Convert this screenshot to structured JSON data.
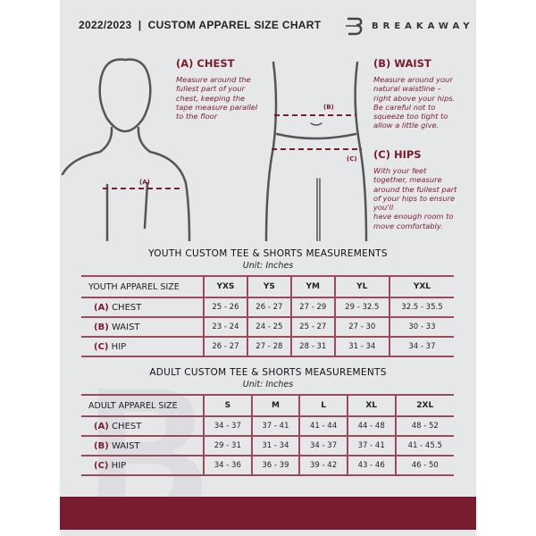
{
  "header": {
    "title": "2022/2023  |  CUSTOM APPAREL SIZE CHART",
    "brand": "BREAKAWAY"
  },
  "colors": {
    "accent": "#7a1c30",
    "background": "#e6e7e9"
  },
  "diagram": {
    "label_a": "(A)",
    "label_b": "(B)",
    "label_c": "(C)"
  },
  "sections": {
    "chest": {
      "heading": "(A) CHEST",
      "text": [
        "Measure around the",
        "fullest part of your",
        "chest, keeping the",
        "tape measure parallel",
        "to the floor"
      ]
    },
    "waist": {
      "heading": "(B) WAIST",
      "text": [
        "Measure around your",
        "natural waistline –",
        "right above your hips.",
        "Be careful not to",
        "squeeze too tight to",
        "allow a little give."
      ]
    },
    "hips": {
      "heading": "(C) HIPS",
      "text": [
        "With your feet",
        "together, measure",
        "around the fullest part",
        "of your hips to ensure",
        "you'll",
        "have enough room to",
        "move comfortably."
      ]
    }
  },
  "youth": {
    "title": "YOUTH CUSTOM TEE & SHORTS MEASUREMENTS",
    "unit": "Unit: Inches",
    "header": [
      "YOUTH APPAREL SIZE",
      "YXS",
      "YS",
      "YM",
      "YL",
      "YXL"
    ],
    "rows": [
      {
        "code": "(A)",
        "name": "CHEST",
        "values": [
          "25 - 26",
          "26 - 27",
          "27 - 29",
          "29 - 32.5",
          "32.5 - 35.5"
        ]
      },
      {
        "code": "(B)",
        "name": "WAIST",
        "values": [
          "23 - 24",
          "24 - 25",
          "25 - 27",
          "27 - 30",
          "30 - 33"
        ]
      },
      {
        "code": "(C)",
        "name": "HIP",
        "values": [
          "26 - 27",
          "27 - 28",
          "28 - 31",
          "31 - 34",
          "34 - 37"
        ]
      }
    ]
  },
  "adult": {
    "title": "ADULT CUSTOM TEE & SHORTS MEASUREMENTS",
    "unit": "Unit: Inches",
    "header": [
      "ADULT APPAREL SIZE",
      "S",
      "M",
      "L",
      "XL",
      "2XL"
    ],
    "rows": [
      {
        "code": "(A)",
        "name": "CHEST",
        "values": [
          "34 - 37",
          "37 - 41",
          "41 - 44",
          "44 - 48",
          "48 - 52"
        ]
      },
      {
        "code": "(B)",
        "name": "WAIST",
        "values": [
          "29 - 31",
          "31 - 34",
          "34 - 37",
          "37 - 41",
          "41 - 45.5"
        ]
      },
      {
        "code": "(C)",
        "name": "HIP",
        "values": [
          "34 - 36",
          "36 - 39",
          "39 - 42",
          "43 - 46",
          "46 - 50"
        ]
      }
    ]
  }
}
